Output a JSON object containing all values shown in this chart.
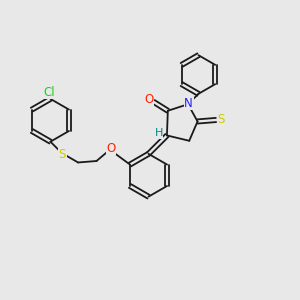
{
  "background_color": "#e8e8e8",
  "bond_color": "#1a1a1a",
  "atoms": {
    "Cl": {
      "color": "#22cc22",
      "fontsize": 8.5
    },
    "S": {
      "color": "#cccc00",
      "fontsize": 8.5
    },
    "O": {
      "color": "#ff2200",
      "fontsize": 8.5
    },
    "N": {
      "color": "#2222ff",
      "fontsize": 8.5
    },
    "H": {
      "color": "#008888",
      "fontsize": 8.0
    }
  },
  "line_width": 1.3,
  "figsize": [
    3.0,
    3.0
  ],
  "dpi": 100,
  "xlim": [
    0,
    10
  ],
  "ylim": [
    0,
    10
  ]
}
